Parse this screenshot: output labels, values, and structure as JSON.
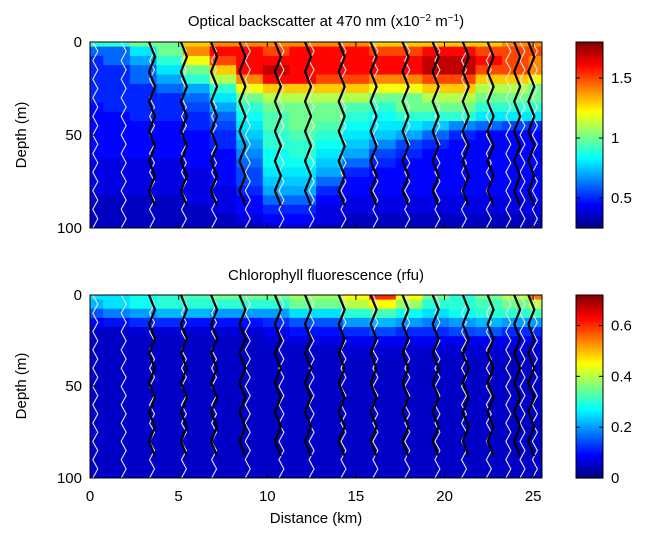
{
  "figure": {
    "shared_xlabel": "Distance (km)",
    "x_ticks": [
      "0",
      "5",
      "10",
      "15",
      "20",
      "25"
    ]
  },
  "chart_data": [
    {
      "type": "heatmap",
      "title_main": "Optical backscatter at 470 nm (x10",
      "title_exp1": "−2",
      "title_mid": " m",
      "title_exp2": "−1",
      "title_end": ")",
      "ylabel": "Depth (m)",
      "xlim": [
        0,
        25.5
      ],
      "ylim": [
        100,
        0
      ],
      "y_ticks": [
        "0",
        "50",
        "100"
      ],
      "colorbar": {
        "range": [
          0.25,
          1.8
        ],
        "ticks": [
          "0.5",
          "1",
          "1.5"
        ],
        "tick_values": [
          0.5,
          1,
          1.5
        ]
      },
      "x_km": [
        0,
        1.5,
        3,
        4.5,
        6,
        7.5,
        9,
        10.5,
        12,
        13.5,
        15,
        16.5,
        18,
        19.5,
        21,
        22.5,
        24,
        25.5
      ],
      "depth_m": [
        0,
        5,
        10,
        15,
        20,
        25,
        30,
        35,
        40,
        45,
        50,
        55,
        60,
        65,
        70,
        75,
        80,
        85,
        90,
        95,
        100
      ],
      "values": [
        [
          0.9,
          0.9,
          1.0,
          1.0,
          1.3,
          1.4,
          1.4,
          1.4,
          1.4,
          1.4,
          1.4,
          1.3,
          1.3,
          1.3,
          1.3,
          1.3,
          1.4,
          1.4
        ],
        [
          0.6,
          0.6,
          0.8,
          1.0,
          1.4,
          1.6,
          1.6,
          1.5,
          1.6,
          1.6,
          1.6,
          1.5,
          1.5,
          1.6,
          1.6,
          1.5,
          1.5,
          1.5
        ],
        [
          0.5,
          0.6,
          0.7,
          0.9,
          1.2,
          1.5,
          1.6,
          1.6,
          1.6,
          1.6,
          1.6,
          1.6,
          1.6,
          1.7,
          1.7,
          1.6,
          1.5,
          1.4
        ],
        [
          0.5,
          0.5,
          0.6,
          0.8,
          1.0,
          1.3,
          1.6,
          1.7,
          1.6,
          1.6,
          1.6,
          1.6,
          1.6,
          1.7,
          1.7,
          1.5,
          1.5,
          1.4
        ],
        [
          0.5,
          0.5,
          0.6,
          0.7,
          0.9,
          1.1,
          1.4,
          1.6,
          1.6,
          1.5,
          1.5,
          1.4,
          1.4,
          1.5,
          1.5,
          1.3,
          1.3,
          1.2
        ],
        [
          0.5,
          0.5,
          0.5,
          0.6,
          0.7,
          0.9,
          1.2,
          1.3,
          1.3,
          1.3,
          1.3,
          1.2,
          1.2,
          1.3,
          1.3,
          1.1,
          1.1,
          1.0
        ],
        [
          0.5,
          0.5,
          0.5,
          0.5,
          0.6,
          0.8,
          1.0,
          1.1,
          1.1,
          1.1,
          1.1,
          1.0,
          1.0,
          1.1,
          1.1,
          1.0,
          1.0,
          1.0
        ],
        [
          0.45,
          0.5,
          0.5,
          0.5,
          0.55,
          0.7,
          0.9,
          1.0,
          1.0,
          1.0,
          0.95,
          0.9,
          1.0,
          1.0,
          1.0,
          0.9,
          0.9,
          0.9
        ],
        [
          0.45,
          0.45,
          0.5,
          0.5,
          0.5,
          0.6,
          0.85,
          0.95,
          1.0,
          1.0,
          0.9,
          0.85,
          0.9,
          0.9,
          0.9,
          0.8,
          0.8,
          0.8
        ],
        [
          0.45,
          0.45,
          0.45,
          0.45,
          0.5,
          0.55,
          0.8,
          0.95,
          1.0,
          0.95,
          0.85,
          0.8,
          0.8,
          0.75,
          0.65,
          0.6,
          0.55,
          0.5
        ],
        [
          0.45,
          0.45,
          0.45,
          0.45,
          0.45,
          0.5,
          0.75,
          0.9,
          0.95,
          0.9,
          0.8,
          0.75,
          0.7,
          0.6,
          0.5,
          0.45,
          0.45,
          0.45
        ],
        [
          0.45,
          0.45,
          0.45,
          0.45,
          0.45,
          0.5,
          0.7,
          0.9,
          0.9,
          0.85,
          0.75,
          0.65,
          0.55,
          0.5,
          0.45,
          0.45,
          0.45,
          0.45
        ],
        [
          0.45,
          0.45,
          0.45,
          0.45,
          0.45,
          0.45,
          0.65,
          0.85,
          0.9,
          0.8,
          0.7,
          0.55,
          0.5,
          0.45,
          0.45,
          0.45,
          0.45,
          0.45
        ],
        [
          0.4,
          0.4,
          0.4,
          0.4,
          0.45,
          0.45,
          0.6,
          0.85,
          0.85,
          0.75,
          0.6,
          0.5,
          0.45,
          0.45,
          0.45,
          0.45,
          0.45,
          0.45
        ],
        [
          0.4,
          0.4,
          0.4,
          0.4,
          0.4,
          0.45,
          0.55,
          0.8,
          0.8,
          0.7,
          0.5,
          0.45,
          0.45,
          0.45,
          0.45,
          0.45,
          0.45,
          0.45
        ],
        [
          0.4,
          0.4,
          0.4,
          0.4,
          0.4,
          0.45,
          0.55,
          0.75,
          0.75,
          0.6,
          0.45,
          0.45,
          0.45,
          0.45,
          0.45,
          0.45,
          0.45,
          0.45
        ],
        [
          0.4,
          0.4,
          0.4,
          0.4,
          0.4,
          0.4,
          0.5,
          0.7,
          0.7,
          0.5,
          0.45,
          0.45,
          0.45,
          0.45,
          0.45,
          0.45,
          0.45,
          0.45
        ],
        [
          0.35,
          0.35,
          0.35,
          0.35,
          0.4,
          0.4,
          0.45,
          0.6,
          0.6,
          0.45,
          0.4,
          0.4,
          0.4,
          0.4,
          0.4,
          0.4,
          0.4,
          0.4
        ],
        [
          0.35,
          0.35,
          0.35,
          0.35,
          0.35,
          0.4,
          0.45,
          0.5,
          0.5,
          0.4,
          0.4,
          0.4,
          0.4,
          0.4,
          0.4,
          0.4,
          0.4,
          0.4
        ],
        [
          0.35,
          0.35,
          0.35,
          0.35,
          0.35,
          0.35,
          0.4,
          0.45,
          0.45,
          0.4,
          0.35,
          0.35,
          0.35,
          0.35,
          0.35,
          0.35,
          0.35,
          0.35
        ],
        [
          0.35,
          0.35,
          0.35,
          0.35,
          0.35,
          0.35,
          0.35,
          0.4,
          0.4,
          0.35,
          0.35,
          0.35,
          0.35,
          0.35,
          0.35,
          0.35,
          0.35,
          0.35
        ]
      ]
    },
    {
      "type": "heatmap",
      "title": "Chlorophyll fluorescence (rfu)",
      "ylabel": "Depth (m)",
      "xlabel": "Distance (km)",
      "xlim": [
        0,
        25.5
      ],
      "ylim": [
        100,
        0
      ],
      "y_ticks": [
        "0",
        "50",
        "100"
      ],
      "colorbar": {
        "range": [
          0,
          0.72
        ],
        "ticks": [
          "0",
          "0.2",
          "0.4",
          "0.6"
        ],
        "tick_values": [
          0,
          0.2,
          0.4,
          0.6
        ]
      },
      "x_km": [
        0,
        1.5,
        3,
        4.5,
        6,
        7.5,
        9,
        10.5,
        12,
        13.5,
        15,
        16.5,
        18,
        19.5,
        21,
        22.5,
        24,
        25.5
      ],
      "depth_m": [
        0,
        5,
        10,
        15,
        20,
        25,
        30,
        35,
        40,
        45,
        50,
        55,
        60,
        65,
        70,
        75,
        80,
        85,
        90,
        95,
        100
      ],
      "values": [
        [
          0.25,
          0.25,
          0.28,
          0.3,
          0.32,
          0.35,
          0.35,
          0.35,
          0.38,
          0.38,
          0.45,
          0.6,
          0.45,
          0.35,
          0.3,
          0.35,
          0.4,
          0.55
        ],
        [
          0.22,
          0.25,
          0.28,
          0.3,
          0.3,
          0.3,
          0.3,
          0.3,
          0.35,
          0.35,
          0.4,
          0.45,
          0.38,
          0.3,
          0.3,
          0.32,
          0.35,
          0.4
        ],
        [
          0.15,
          0.18,
          0.2,
          0.22,
          0.22,
          0.2,
          0.2,
          0.2,
          0.25,
          0.25,
          0.3,
          0.32,
          0.28,
          0.25,
          0.28,
          0.3,
          0.3,
          0.32
        ],
        [
          0.08,
          0.1,
          0.12,
          0.12,
          0.1,
          0.1,
          0.1,
          0.12,
          0.15,
          0.15,
          0.2,
          0.22,
          0.2,
          0.18,
          0.2,
          0.22,
          0.2,
          0.2
        ],
        [
          0.05,
          0.05,
          0.06,
          0.06,
          0.06,
          0.06,
          0.06,
          0.08,
          0.1,
          0.1,
          0.12,
          0.14,
          0.12,
          0.12,
          0.14,
          0.15,
          0.12,
          0.12
        ],
        [
          0.05,
          0.05,
          0.05,
          0.05,
          0.05,
          0.05,
          0.05,
          0.06,
          0.07,
          0.07,
          0.08,
          0.08,
          0.08,
          0.08,
          0.08,
          0.08,
          0.08,
          0.08
        ],
        [
          0.05,
          0.05,
          0.05,
          0.05,
          0.05,
          0.05,
          0.05,
          0.05,
          0.05,
          0.05,
          0.06,
          0.06,
          0.06,
          0.06,
          0.06,
          0.06,
          0.06,
          0.06
        ],
        [
          0.05,
          0.05,
          0.05,
          0.05,
          0.05,
          0.05,
          0.05,
          0.05,
          0.05,
          0.05,
          0.05,
          0.05,
          0.05,
          0.05,
          0.05,
          0.05,
          0.05,
          0.05
        ],
        [
          0.05,
          0.05,
          0.05,
          0.05,
          0.05,
          0.05,
          0.05,
          0.05,
          0.05,
          0.05,
          0.05,
          0.05,
          0.05,
          0.05,
          0.05,
          0.05,
          0.05,
          0.05
        ],
        [
          0.05,
          0.05,
          0.05,
          0.05,
          0.05,
          0.05,
          0.05,
          0.05,
          0.05,
          0.05,
          0.05,
          0.05,
          0.05,
          0.05,
          0.05,
          0.05,
          0.05,
          0.05
        ],
        [
          0.05,
          0.05,
          0.05,
          0.05,
          0.05,
          0.05,
          0.05,
          0.05,
          0.05,
          0.05,
          0.05,
          0.05,
          0.05,
          0.05,
          0.05,
          0.05,
          0.05,
          0.05
        ],
        [
          0.05,
          0.05,
          0.05,
          0.05,
          0.05,
          0.05,
          0.05,
          0.05,
          0.05,
          0.05,
          0.05,
          0.05,
          0.05,
          0.05,
          0.05,
          0.05,
          0.05,
          0.05
        ],
        [
          0.05,
          0.05,
          0.05,
          0.05,
          0.05,
          0.05,
          0.05,
          0.05,
          0.05,
          0.05,
          0.05,
          0.05,
          0.05,
          0.05,
          0.05,
          0.05,
          0.05,
          0.05
        ],
        [
          0.05,
          0.05,
          0.05,
          0.05,
          0.05,
          0.05,
          0.05,
          0.05,
          0.05,
          0.05,
          0.05,
          0.05,
          0.05,
          0.05,
          0.05,
          0.05,
          0.05,
          0.05
        ],
        [
          0.05,
          0.05,
          0.05,
          0.05,
          0.05,
          0.05,
          0.05,
          0.05,
          0.05,
          0.05,
          0.05,
          0.05,
          0.05,
          0.05,
          0.05,
          0.05,
          0.05,
          0.05
        ],
        [
          0.05,
          0.05,
          0.05,
          0.05,
          0.05,
          0.05,
          0.05,
          0.05,
          0.05,
          0.05,
          0.05,
          0.05,
          0.05,
          0.05,
          0.05,
          0.05,
          0.05,
          0.05
        ],
        [
          0.05,
          0.05,
          0.05,
          0.05,
          0.05,
          0.05,
          0.05,
          0.05,
          0.05,
          0.05,
          0.05,
          0.05,
          0.05,
          0.05,
          0.05,
          0.05,
          0.05,
          0.05
        ],
        [
          0.05,
          0.05,
          0.05,
          0.05,
          0.05,
          0.05,
          0.05,
          0.05,
          0.05,
          0.05,
          0.05,
          0.05,
          0.05,
          0.05,
          0.05,
          0.05,
          0.05,
          0.05
        ],
        [
          0.05,
          0.05,
          0.05,
          0.05,
          0.05,
          0.05,
          0.05,
          0.05,
          0.05,
          0.05,
          0.05,
          0.05,
          0.05,
          0.05,
          0.05,
          0.05,
          0.05,
          0.05
        ],
        [
          0.05,
          0.05,
          0.05,
          0.05,
          0.05,
          0.05,
          0.05,
          0.05,
          0.05,
          0.05,
          0.05,
          0.05,
          0.05,
          0.05,
          0.05,
          0.05,
          0.05,
          0.05
        ],
        [
          0.05,
          0.05,
          0.05,
          0.05,
          0.05,
          0.05,
          0.05,
          0.05,
          0.05,
          0.05,
          0.05,
          0.05,
          0.05,
          0.05,
          0.05,
          0.05,
          0.05,
          0.05
        ]
      ]
    }
  ],
  "glider_tracks": {
    "white_profile_x_km": [
      0.3,
      1.9,
      3.5,
      5.3,
      7.0,
      8.9,
      10.8,
      12.5,
      14.3,
      16.1,
      17.9,
      19.6,
      21.1,
      22.5,
      23.6,
      24.4,
      25.1
    ],
    "black_profile_x_km": [
      3.5,
      5.3,
      7.0,
      8.6,
      10.6,
      12.3,
      14.2,
      16.0,
      17.8,
      19.5,
      21.2,
      22.6,
      24.1,
      24.9
    ]
  }
}
